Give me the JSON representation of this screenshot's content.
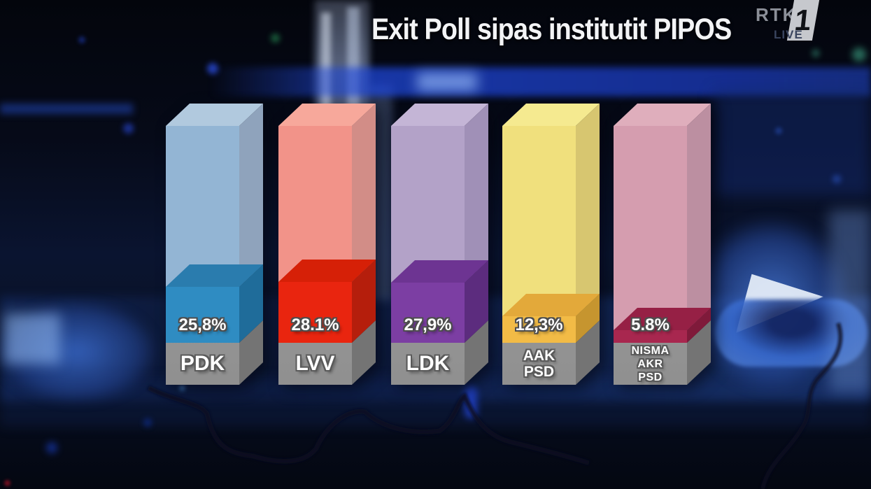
{
  "header": {
    "title": "Exit Poll sipas institutit PIPOS",
    "logo": {
      "brand": "RTK",
      "channel_number": "1",
      "live_label": "LIVE"
    }
  },
  "chart_data": {
    "type": "bar",
    "title": "Exit Poll sipas institutit PIPOS",
    "institute": "PIPOS",
    "unit": "%",
    "grid": false,
    "legend_position": "none",
    "categories": [
      "PDK",
      "LVV",
      "LDK",
      "AAK PSD",
      "NISMA AKR PSD"
    ],
    "values": [
      25.8,
      28.1,
      27.9,
      12.3,
      5.8
    ],
    "value_labels": [
      "25,8%",
      "28.1%",
      "27,9%",
      "12,3%",
      "5.8%"
    ],
    "bars": [
      {
        "party": "PDK",
        "label_lines": [
          "PDK"
        ],
        "value": 25.8,
        "value_label": "25,8%",
        "colors": {
          "segment_front": "#2F8CC2",
          "segment_top": "#2A7CAE",
          "segment_right": "#1F6C9A",
          "column_front": "#93B5D4",
          "column_top": "#B1C9DE",
          "column_right": "#8FA3BC"
        }
      },
      {
        "party": "LVV",
        "label_lines": [
          "LVV"
        ],
        "value": 28.1,
        "value_label": "28.1%",
        "colors": {
          "segment_front": "#E9250F",
          "segment_top": "#D62007",
          "segment_right": "#B51E0C",
          "column_front": "#F29389",
          "column_top": "#F7A89B",
          "column_right": "#D28D87"
        }
      },
      {
        "party": "LDK",
        "label_lines": [
          "LDK"
        ],
        "value": 27.9,
        "value_label": "27,9%",
        "colors": {
          "segment_front": "#7C3EA3",
          "segment_top": "#6D3492",
          "segment_right": "#5C2C7E",
          "column_front": "#B3A2C8",
          "column_top": "#C4B5D6",
          "column_right": "#A090B7"
        }
      },
      {
        "party": "AAK PSD",
        "label_lines": [
          "AAK",
          "PSD"
        ],
        "value": 12.3,
        "value_label": "12,3%",
        "colors": {
          "segment_front": "#F2BB46",
          "segment_top": "#E3A93A",
          "segment_right": "#C6952F",
          "column_front": "#F0E07D",
          "column_top": "#F5EA90",
          "column_right": "#D7C670"
        }
      },
      {
        "party": "NISMA AKR PSD",
        "label_lines": [
          "NISMA",
          "AKR",
          "PSD"
        ],
        "value": 5.8,
        "value_label": "5.8%",
        "colors": {
          "segment_front": "#A8274F",
          "segment_top": "#962045",
          "segment_right": "#7F1A3A",
          "column_front": "#D59DAF",
          "column_top": "#DFAEBC",
          "column_right": "#BC8FA1"
        }
      }
    ],
    "base_colors": {
      "front": "#9E9E9E",
      "right": "#747474"
    },
    "accent_colors": {
      "studio_blue": "#2A55C4",
      "title_white": "#F3F4F6"
    }
  }
}
